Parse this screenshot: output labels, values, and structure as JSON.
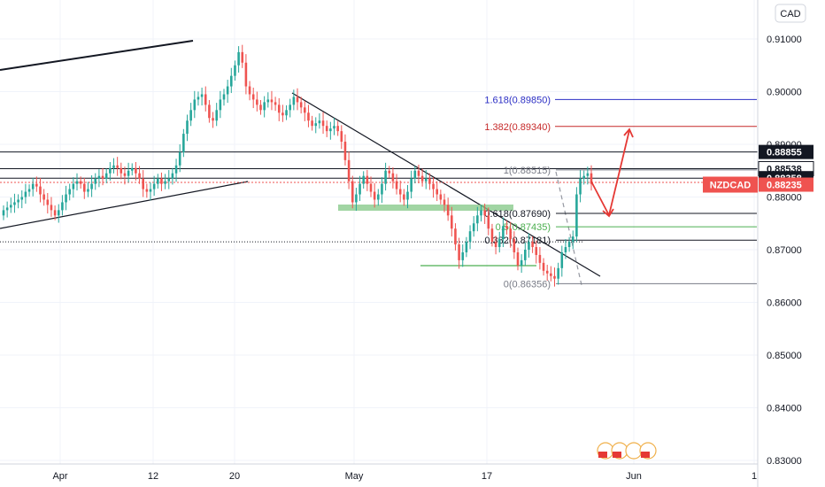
{
  "chart_data": {
    "type": "candlestick",
    "symbol": "NZDCAD",
    "currency": "CAD",
    "current_price": "0.88235",
    "ylim": [
      0.8295,
      0.9155
    ],
    "y_ticks": [
      "0.91000",
      "0.90000",
      "0.89000",
      "0.88000",
      "0.87000",
      "0.86000",
      "0.85000",
      "0.84000",
      "0.83000"
    ],
    "x_ticks": [
      "Apr",
      "12",
      "20",
      "May",
      "17",
      "Jun",
      "1"
    ],
    "price_tags": [
      {
        "label": "0.88855",
        "style": "black"
      },
      {
        "label": "0.88538",
        "style": "white"
      },
      {
        "label": "0.88358",
        "style": "black"
      },
      {
        "label": "0.88235",
        "style": "red"
      }
    ],
    "fib_levels": [
      {
        "label": "1.618(0.89850)",
        "value": 0.8985,
        "color": "#2b2ec4"
      },
      {
        "label": "1.382(0.89340)",
        "value": 0.8934,
        "color": "#c62828"
      },
      {
        "label": "1(0.88515)",
        "value": 0.88515,
        "color": "#787b86"
      },
      {
        "label": "0.618(0.87690)",
        "value": 0.8769,
        "color": "#131722"
      },
      {
        "label": "0.5(0.87435)",
        "value": 0.87435,
        "color": "#4caf50"
      },
      {
        "label": "0.382(0.87181)",
        "value": 0.87181,
        "color": "#131722"
      },
      {
        "label": "0(0.86356)",
        "value": 0.86356,
        "color": "#787b86"
      }
    ],
    "horizontal_levels": [
      0.88855,
      0.88538,
      0.88358
    ],
    "closes": [
      0.8775,
      0.878,
      0.8785,
      0.879,
      0.8795,
      0.88,
      0.881,
      0.8815,
      0.8825,
      0.882,
      0.8805,
      0.8795,
      0.8785,
      0.8775,
      0.8765,
      0.8775,
      0.879,
      0.8805,
      0.8815,
      0.8825,
      0.883,
      0.8825,
      0.881,
      0.8815,
      0.8825,
      0.8835,
      0.884,
      0.8835,
      0.8845,
      0.8855,
      0.886,
      0.8855,
      0.8845,
      0.884,
      0.885,
      0.8855,
      0.8845,
      0.8835,
      0.8815,
      0.881,
      0.8815,
      0.8825,
      0.8835,
      0.8825,
      0.883,
      0.8835,
      0.8845,
      0.886,
      0.8885,
      0.892,
      0.8945,
      0.8965,
      0.8985,
      0.899,
      0.8995,
      0.8975,
      0.895,
      0.8945,
      0.8965,
      0.8985,
      0.8995,
      0.901,
      0.903,
      0.905,
      0.9075,
      0.9055,
      0.901,
      0.8995,
      0.8985,
      0.8975,
      0.8965,
      0.898,
      0.8985,
      0.898,
      0.8975,
      0.896,
      0.8955,
      0.8965,
      0.8975,
      0.899,
      0.898,
      0.897,
      0.896,
      0.8945,
      0.8935,
      0.894,
      0.8945,
      0.8935,
      0.8925,
      0.893,
      0.8935,
      0.8925,
      0.8905,
      0.887,
      0.883,
      0.879,
      0.8805,
      0.8825,
      0.884,
      0.8825,
      0.881,
      0.8795,
      0.8805,
      0.8825,
      0.885,
      0.8845,
      0.883,
      0.8815,
      0.8805,
      0.8795,
      0.881,
      0.8835,
      0.885,
      0.884,
      0.883,
      0.8835,
      0.8825,
      0.8815,
      0.8805,
      0.8795,
      0.8785,
      0.8765,
      0.874,
      0.871,
      0.868,
      0.8695,
      0.8715,
      0.8735,
      0.875,
      0.8765,
      0.8775,
      0.8765,
      0.874,
      0.8715,
      0.8705,
      0.872,
      0.8745,
      0.874,
      0.872,
      0.8695,
      0.867,
      0.868,
      0.87,
      0.8715,
      0.8705,
      0.869,
      0.8675,
      0.866,
      0.8655,
      0.865,
      0.8645,
      0.8665,
      0.8695,
      0.8705,
      0.8715,
      0.8725,
      0.8805,
      0.8835,
      0.884,
      0.8845,
      0.8825
    ]
  }
}
